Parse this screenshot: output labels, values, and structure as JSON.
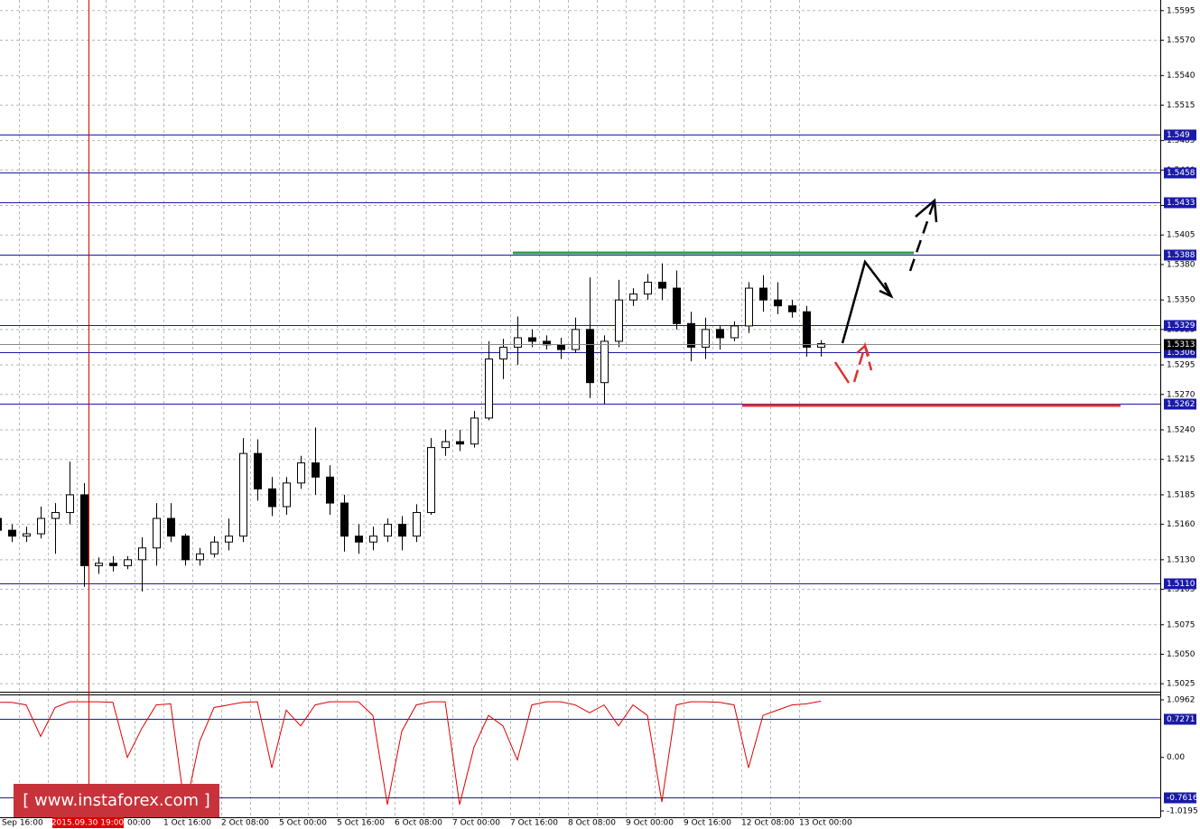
{
  "chart_data": [
    {
      "type": "candlestick",
      "categories": [
        "Sep 16:00",
        null,
        null,
        null,
        null,
        null,
        null,
        null,
        "00:00",
        null,
        null,
        null,
        "1 Oct 16:00",
        null,
        null,
        null,
        "2 Oct 08:00",
        null,
        null,
        null,
        "5 Oct 00:00",
        null,
        null,
        null,
        "5 Oct 16:00",
        null,
        null,
        null,
        "6 Oct 08:00",
        null,
        null,
        null,
        "7 Oct 00:00",
        null,
        null,
        null,
        "7 Oct 16:00",
        null,
        null,
        null,
        "8 Oct 08:00",
        null,
        null,
        null,
        "9 Oct 00:00",
        null,
        null,
        null,
        "9 Oct 16:00",
        null,
        null,
        null,
        "12 Oct 08:00",
        null,
        null,
        null,
        "13 Oct 00:00",
        null
      ],
      "open": [
        1.5165,
        1.5155,
        1.515,
        1.5152,
        1.5165,
        1.517,
        1.5185,
        1.5125,
        1.5127,
        1.5125,
        1.513,
        1.514,
        1.5165,
        1.515,
        1.513,
        1.5135,
        1.5145,
        1.515,
        1.522,
        1.519,
        1.5175,
        1.5195,
        1.5212,
        1.52,
        1.5178,
        1.515,
        1.5145,
        1.515,
        1.516,
        1.515,
        1.517,
        1.5225,
        1.523,
        1.5228,
        1.525,
        1.53,
        1.531,
        1.5318,
        1.5315,
        1.5312,
        1.5308,
        1.5325,
        1.528,
        1.5315,
        1.535,
        1.5355,
        1.5365,
        1.536,
        1.533,
        1.531,
        1.5325,
        1.5318,
        1.5328,
        1.536,
        1.535,
        1.5345,
        1.534,
        1.531
      ],
      "high": [
        1.517,
        1.516,
        1.5158,
        1.5175,
        1.5178,
        1.5213,
        1.5195,
        1.5132,
        1.5133,
        1.5133,
        1.5149,
        1.5178,
        1.5178,
        1.5152,
        1.514,
        1.515,
        1.5165,
        1.5233,
        1.5232,
        1.52,
        1.52,
        1.5218,
        1.5242,
        1.521,
        1.5185,
        1.516,
        1.5158,
        1.5165,
        1.5167,
        1.5177,
        1.5233,
        1.524,
        1.524,
        1.5256,
        1.5315,
        1.5317,
        1.5336,
        1.5325,
        1.532,
        1.5318,
        1.5335,
        1.5369,
        1.532,
        1.5367,
        1.536,
        1.5372,
        1.5381,
        1.5375,
        1.534,
        1.5335,
        1.5328,
        1.5332,
        1.5365,
        1.5371,
        1.5365,
        1.535,
        1.5345,
        1.5316
      ],
      "low": [
        1.515,
        1.5145,
        1.5145,
        1.5148,
        1.5135,
        1.516,
        1.5107,
        1.5118,
        1.512,
        1.5122,
        1.5103,
        1.5125,
        1.5145,
        1.5125,
        1.5125,
        1.5132,
        1.5138,
        1.5145,
        1.518,
        1.5167,
        1.5168,
        1.519,
        1.5185,
        1.5168,
        1.5137,
        1.5135,
        1.5138,
        1.5145,
        1.5138,
        1.5145,
        1.5168,
        1.5218,
        1.5222,
        1.5225,
        1.5248,
        1.5283,
        1.5295,
        1.531,
        1.5308,
        1.53,
        1.5305,
        1.5267,
        1.5262,
        1.531,
        1.5345,
        1.535,
        1.535,
        1.5325,
        1.5298,
        1.53,
        1.5308,
        1.5315,
        1.5322,
        1.534,
        1.5338,
        1.5335,
        1.5302,
        1.5302
      ],
      "close": [
        1.5155,
        1.515,
        1.5152,
        1.5165,
        1.517,
        1.5185,
        1.5125,
        1.5127,
        1.5125,
        1.513,
        1.514,
        1.5165,
        1.515,
        1.513,
        1.5135,
        1.5145,
        1.515,
        1.522,
        1.519,
        1.5175,
        1.5195,
        1.5212,
        1.52,
        1.5178,
        1.515,
        1.5145,
        1.515,
        1.516,
        1.515,
        1.517,
        1.5225,
        1.523,
        1.5228,
        1.525,
        1.53,
        1.531,
        1.5318,
        1.5315,
        1.5312,
        1.5308,
        1.5325,
        1.528,
        1.5315,
        1.535,
        1.5355,
        1.5365,
        1.536,
        1.533,
        1.531,
        1.5325,
        1.5318,
        1.5328,
        1.536,
        1.535,
        1.5345,
        1.534,
        1.531,
        1.5313
      ],
      "up_color": "#ffffff",
      "down_color": "#000000",
      "ylim": [
        1.5019,
        1.5604
      ],
      "yticks": [
        1.5595,
        {
          "value": 1.557,
          "label": "1.5570"
        },
        {
          "value": 1.554,
          "label": "1.5540"
        },
        1.5515,
        1.5485,
        {
          "value": 1.546,
          "label": "1.5460"
        },
        {
          "value": 1.543,
          "label": "1.5430"
        },
        1.5405,
        {
          "value": 1.538,
          "label": "1.5380"
        },
        {
          "value": 1.535,
          "label": "1.5350"
        },
        1.5325,
        1.5295,
        {
          "value": 1.527,
          "label": "1.5270"
        },
        {
          "value": 1.524,
          "label": "1.5240"
        },
        1.5215,
        1.5185,
        {
          "value": 1.516,
          "label": "1.5160"
        },
        {
          "value": 1.513,
          "label": "1.5130"
        },
        1.5105,
        1.5075,
        {
          "value": 1.505,
          "label": "1.5050"
        },
        1.5025
      ],
      "levels": [
        1.549,
        1.5458,
        1.5433,
        1.5388,
        1.5329,
        1.5306,
        1.5262,
        {
          "value": 1.511,
          "label": "1.5110"
        }
      ],
      "levels_color": "#1a1aa8",
      "last_price": 1.5313,
      "crosshair_label": "2015.09.30 19:00",
      "grid": true
    },
    {
      "type": "line",
      "series": [
        {
          "color": "#e00000",
          "values": [
            1.05,
            1.05,
            1.0,
            0.4,
            0.95,
            1.06,
            1.06,
            1.06,
            1.05,
            0.0,
            0.55,
            1.0,
            1.02,
            -1.0,
            0.3,
            0.95,
            1.0,
            1.05,
            1.06,
            -0.2,
            0.9,
            0.6,
            1.0,
            1.06,
            1.06,
            1.06,
            0.8,
            -0.9,
            0.5,
            1.0,
            1.06,
            1.06,
            -0.9,
            0.2,
            0.8,
            0.6,
            -0.05,
            1.0,
            1.06,
            1.06,
            1.0,
            0.85,
            1.0,
            0.6,
            1.0,
            0.8,
            -0.85,
            1.0,
            1.06,
            1.06,
            1.05,
            1.0,
            -0.2,
            0.8,
            0.9,
            1.0,
            1.02,
            1.07
          ]
        }
      ],
      "ylim": [
        -1.14,
        1.182
      ],
      "yticks": [
        1.0962,
        {
          "value": 0,
          "label": "0.00"
        },
        -1.0195
      ],
      "levels": [
        0.7271,
        -0.7616
      ],
      "levels_color": "#1a1aa8",
      "watermark": "[ www.instaforex.com ]"
    }
  ]
}
